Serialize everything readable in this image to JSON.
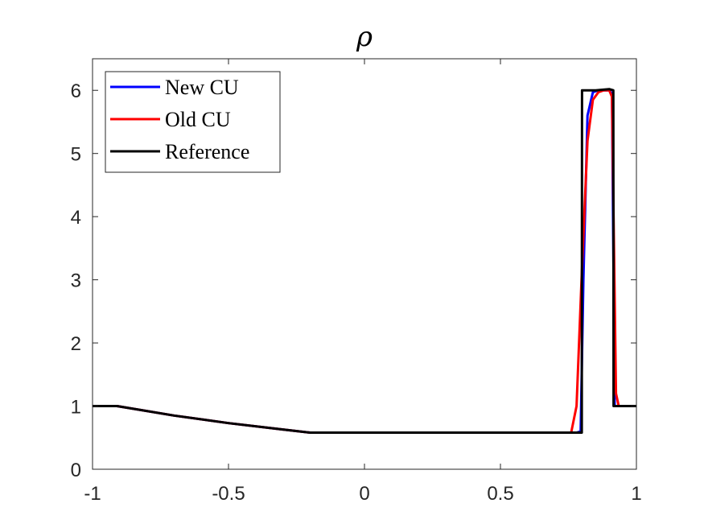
{
  "chart_data": {
    "type": "line",
    "title": "ρ",
    "xlabel": "",
    "ylabel": "",
    "xlim": [
      -1,
      1
    ],
    "ylim": [
      0,
      6.5
    ],
    "xticks": [
      -1,
      -0.5,
      0,
      0.5,
      1
    ],
    "xtick_labels": [
      "-1",
      "-0.5",
      "0",
      "0.5",
      "1"
    ],
    "yticks": [
      0,
      1,
      2,
      3,
      4,
      5,
      6
    ],
    "ytick_labels": [
      "0",
      "1",
      "2",
      "3",
      "4",
      "5",
      "6"
    ],
    "grid": false,
    "legend": {
      "placement": "top-left"
    },
    "series": [
      {
        "name": "New CU",
        "color": "#0000ff",
        "x": [
          -1,
          -0.91,
          -0.7,
          -0.5,
          -0.3,
          -0.2,
          0,
          0.2,
          0.5,
          0.78,
          0.795,
          0.805,
          0.82,
          0.84,
          0.86,
          0.88,
          0.9,
          0.91,
          0.92,
          0.93,
          1
        ],
        "y": [
          1,
          1,
          0.85,
          0.73,
          0.63,
          0.58,
          0.58,
          0.58,
          0.58,
          0.58,
          0.6,
          3.0,
          5.6,
          5.97,
          6.0,
          6.0,
          6.0,
          5.95,
          1.0,
          1.0,
          1.0
        ]
      },
      {
        "name": "Old CU",
        "color": "#ff0000",
        "x": [
          -1,
          -0.91,
          -0.7,
          -0.5,
          -0.3,
          -0.2,
          0,
          0.2,
          0.5,
          0.76,
          0.78,
          0.8,
          0.82,
          0.84,
          0.86,
          0.88,
          0.9,
          0.91,
          0.925,
          0.935,
          1
        ],
        "y": [
          1,
          1,
          0.85,
          0.73,
          0.63,
          0.58,
          0.58,
          0.58,
          0.58,
          0.58,
          1.0,
          3.2,
          5.2,
          5.85,
          5.97,
          6.0,
          6.0,
          5.9,
          1.2,
          1.0,
          1.0
        ]
      },
      {
        "name": "Reference",
        "color": "#000000",
        "x": [
          -1,
          -0.91,
          -0.7,
          -0.5,
          -0.3,
          -0.2,
          0,
          0.2,
          0.5,
          0.799,
          0.8,
          0.85,
          0.9,
          0.915,
          0.916,
          1
        ],
        "y": [
          1,
          1,
          0.85,
          0.73,
          0.63,
          0.58,
          0.58,
          0.58,
          0.58,
          0.58,
          6.0,
          6.0,
          6.02,
          6.0,
          1.0,
          1.0
        ]
      }
    ]
  }
}
